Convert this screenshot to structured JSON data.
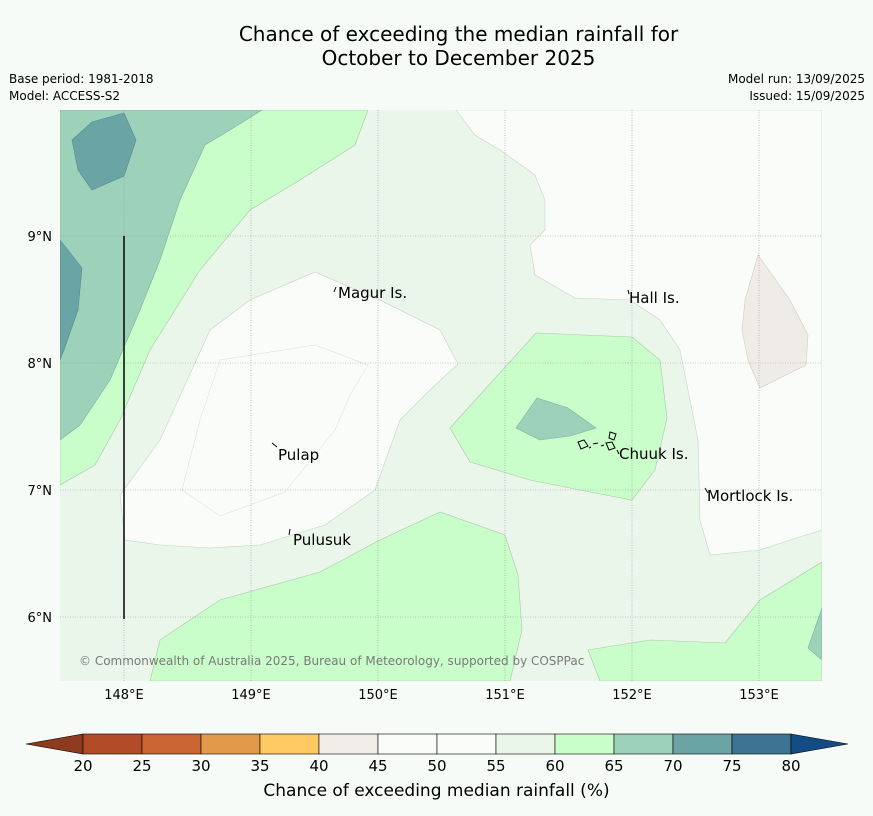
{
  "header": {
    "title_line1": "Chance of exceeding the median rainfall for",
    "title_line2": "October to December 2025",
    "base_period": "Base period: 1981-2018",
    "model": "Model: ACCESS-S2",
    "model_run": "Model run: 13/09/2025",
    "issued": "Issued: 15/09/2025"
  },
  "map": {
    "lon_ticks": [
      "148°E",
      "149°E",
      "150°E",
      "151°E",
      "152°E",
      "153°E"
    ],
    "lat_ticks": [
      "9°N",
      "8°N",
      "7°N",
      "6°N"
    ],
    "places": [
      {
        "name": "Magur Is."
      },
      {
        "name": "Hall Is."
      },
      {
        "name": "Pulap"
      },
      {
        "name": "Chuuk Is."
      },
      {
        "name": "Mortlock Is."
      },
      {
        "name": "Pulusuk"
      }
    ],
    "copyright": "© Commonwealth of Australia 2025, Bureau of Meteorology, supported by COSPPac"
  },
  "colorbar": {
    "title": "Chance of exceeding median rainfall (%)",
    "ticks": [
      "20",
      "25",
      "30",
      "35",
      "40",
      "45",
      "50",
      "55",
      "60",
      "65",
      "70",
      "75",
      "80"
    ],
    "low_color": "#8e3a1e",
    "high_color": "#134c84",
    "colors": [
      "#b24b27",
      "#cb6531",
      "#e19a4a",
      "#fec863",
      "#f1eee9",
      "#fafcf9",
      "#f9fcf8",
      "#eaf6ea",
      "#c9fdc9",
      "#9dd1b9",
      "#6aa4a4",
      "#3e7394"
    ]
  }
}
